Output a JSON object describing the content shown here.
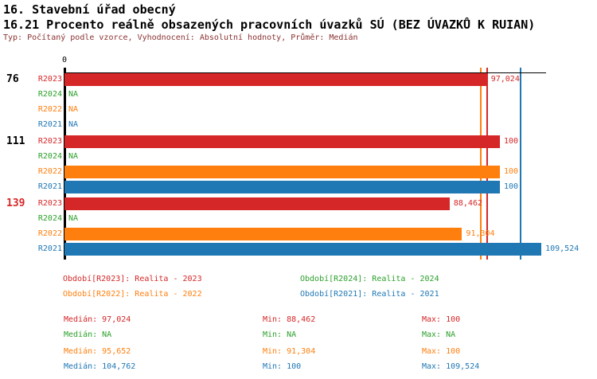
{
  "header": {
    "line1": "16. Stavební úřad obecný",
    "line2": "16.21 Procento reálně obsazených pracovních úvazků SÚ (BEZ ÚVAZKŮ K RUIAN)",
    "line3": "Typ: Počítaný podle vzorce, Vyhodnocení: Absolutní hodnoty, Průměr: Medián"
  },
  "colors": {
    "R2023": "#d62728",
    "R2024": "#2ca02c",
    "R2022": "#ff7f0e",
    "R2021": "#1f77b4",
    "subtitle": "#8b3232",
    "axis": "#000000",
    "group_label_default": "#000000",
    "group_label_alert": "#d62728"
  },
  "chart_data": {
    "type": "bar",
    "orientation": "horizontal",
    "title": "16.21 Procento reálně obsazených pracovních úvazků SÚ (BEZ ÚVAZKŮ K RUIAN)",
    "value_note": "decimal comma (Czech locale)",
    "x_axis": {
      "zero_label": "0",
      "origin": 0,
      "approx_max": 110.6,
      "grid": false
    },
    "series": [
      "R2023",
      "R2024",
      "R2022",
      "R2021"
    ],
    "groups": [
      {
        "label": "76",
        "alert": false,
        "values": [
          {
            "series": "R2023",
            "value": 97.024,
            "display": "97,024"
          },
          {
            "series": "R2024",
            "value": null,
            "display": "NA"
          },
          {
            "series": "R2022",
            "value": null,
            "display": "NA"
          },
          {
            "series": "R2021",
            "value": null,
            "display": "NA"
          }
        ]
      },
      {
        "label": "111",
        "alert": false,
        "values": [
          {
            "series": "R2023",
            "value": 100,
            "display": "100"
          },
          {
            "series": "R2024",
            "value": null,
            "display": "NA"
          },
          {
            "series": "R2022",
            "value": 100,
            "display": "100"
          },
          {
            "series": "R2021",
            "value": 100,
            "display": "100"
          }
        ]
      },
      {
        "label": "139",
        "alert": true,
        "values": [
          {
            "series": "R2023",
            "value": 88.462,
            "display": "88,462"
          },
          {
            "series": "R2024",
            "value": null,
            "display": "NA"
          },
          {
            "series": "R2022",
            "value": 91.304,
            "display": "91,304"
          },
          {
            "series": "R2021",
            "value": 109.524,
            "display": "109,524"
          }
        ]
      }
    ],
    "median_guides": [
      {
        "series": "R2022",
        "value": 95.652
      },
      {
        "series": "R2023",
        "value": 97.024
      },
      {
        "series": "R2021",
        "value": 104.762
      }
    ]
  },
  "legend": [
    {
      "series": "R2023",
      "text": "Období[R2023]: Realita - 2023"
    },
    {
      "series": "R2024",
      "text": "Období[R2024]: Realita - 2024"
    },
    {
      "series": "R2022",
      "text": "Období[R2022]: Realita - 2022"
    },
    {
      "series": "R2021",
      "text": "Období[R2021]: Realita - 2021"
    }
  ],
  "stats": [
    {
      "series": "R2023",
      "median": "Medián: 97,024",
      "min": "Min: 88,462",
      "max": "Max: 100"
    },
    {
      "series": "R2024",
      "median": "Medián: NA",
      "min": "Min: NA",
      "max": "Max: NA"
    },
    {
      "series": "R2022",
      "median": "Medián: 95,652",
      "min": "Min: 91,304",
      "max": "Max: 100"
    },
    {
      "series": "R2021",
      "median": "Medián: 104,762",
      "min": "Min: 100",
      "max": "Max: 109,524"
    }
  ]
}
